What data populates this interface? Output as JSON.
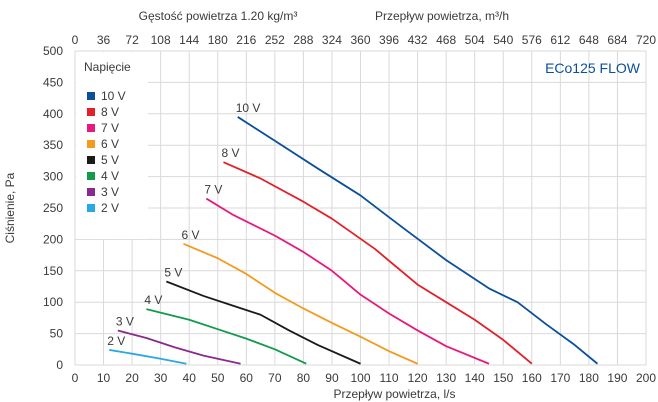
{
  "chart_data": {
    "type": "line",
    "title": "ECo125 FLOW",
    "xlabel": "Przepływ powietrza, l/s",
    "ylabel": "Ciśnienie, Pa",
    "xlim": [
      0,
      200
    ],
    "ylim": [
      0,
      500
    ],
    "x_ticks": [
      0,
      10,
      20,
      30,
      40,
      50,
      60,
      70,
      80,
      90,
      100,
      110,
      120,
      130,
      140,
      150,
      160,
      170,
      180,
      190,
      200
    ],
    "y_ticks": [
      0,
      50,
      100,
      150,
      200,
      250,
      300,
      350,
      400,
      450,
      500
    ],
    "x2label_left": "Gęstość powietrza 1.20 kg/m³",
    "x2label_right": "Przepływ powietrza, m³/h",
    "x2_ticks": [
      "0",
      "36",
      "72",
      "108",
      "144",
      "180",
      "216",
      "252",
      "288",
      "324",
      "360",
      "396",
      "432",
      "468",
      "504",
      "540",
      "576",
      "612",
      "648",
      "684",
      "720"
    ],
    "grid": true,
    "legend": {
      "title": "Napięcie",
      "placement": "top-left"
    },
    "series": [
      {
        "name": "10 V",
        "color": "#0b4f9c",
        "label": "10 V",
        "points": [
          [
            57,
            395
          ],
          [
            70,
            357
          ],
          [
            85,
            313
          ],
          [
            100,
            270
          ],
          [
            115,
            218
          ],
          [
            130,
            167
          ],
          [
            145,
            122
          ],
          [
            155,
            100
          ],
          [
            165,
            65
          ],
          [
            175,
            32
          ],
          [
            183,
            2
          ]
        ]
      },
      {
        "name": "8 V",
        "color": "#e2202a",
        "label": "8 V",
        "points": [
          [
            52,
            323
          ],
          [
            65,
            297
          ],
          [
            80,
            260
          ],
          [
            90,
            233
          ],
          [
            105,
            185
          ],
          [
            120,
            128
          ],
          [
            130,
            100
          ],
          [
            140,
            72
          ],
          [
            150,
            40
          ],
          [
            160,
            2
          ]
        ]
      },
      {
        "name": "7 V",
        "color": "#e6197c",
        "label": "7 V",
        "points": [
          [
            46,
            265
          ],
          [
            55,
            240
          ],
          [
            70,
            206
          ],
          [
            80,
            180
          ],
          [
            90,
            150
          ],
          [
            100,
            112
          ],
          [
            110,
            82
          ],
          [
            120,
            55
          ],
          [
            130,
            30
          ],
          [
            145,
            2
          ]
        ]
      },
      {
        "name": "6 V",
        "color": "#f29b1f",
        "label": "6 V",
        "points": [
          [
            38,
            193
          ],
          [
            50,
            170
          ],
          [
            60,
            145
          ],
          [
            70,
            115
          ],
          [
            80,
            90
          ],
          [
            90,
            67
          ],
          [
            100,
            45
          ],
          [
            110,
            22
          ],
          [
            120,
            2
          ]
        ]
      },
      {
        "name": "5 V",
        "color": "#1a1a1a",
        "label": "5 V",
        "points": [
          [
            32,
            133
          ],
          [
            45,
            110
          ],
          [
            55,
            95
          ],
          [
            65,
            80
          ],
          [
            75,
            55
          ],
          [
            85,
            32
          ],
          [
            100,
            2
          ]
        ]
      },
      {
        "name": "4 V",
        "color": "#139a4a",
        "label": "4 V",
        "points": [
          [
            25,
            89
          ],
          [
            40,
            72
          ],
          [
            50,
            57
          ],
          [
            60,
            42
          ],
          [
            70,
            25
          ],
          [
            81,
            2
          ]
        ]
      },
      {
        "name": "3 V",
        "color": "#8a2a8c",
        "label": "3 V",
        "points": [
          [
            15,
            55
          ],
          [
            25,
            43
          ],
          [
            35,
            28
          ],
          [
            45,
            15
          ],
          [
            58,
            2
          ]
        ]
      },
      {
        "name": "2 V",
        "color": "#2aa8e0",
        "label": "2 V",
        "points": [
          [
            12,
            24
          ],
          [
            20,
            18
          ],
          [
            30,
            10
          ],
          [
            39,
            2
          ]
        ]
      }
    ]
  }
}
